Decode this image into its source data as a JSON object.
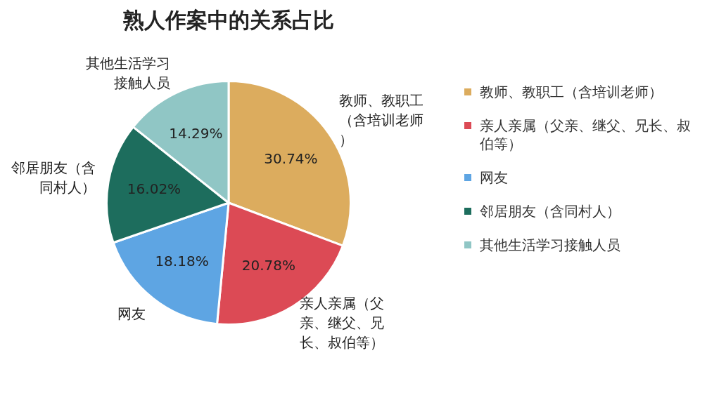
{
  "chart_data": {
    "type": "pie",
    "title": "熟人作案中的关系占比",
    "categories": [
      "教师、教职工（含培训老师）",
      "亲人亲属（父亲、继父、兄长、叔伯等）",
      "网友",
      "邻居朋友（含同村人）",
      "其他生活学习接触人员"
    ],
    "values": [
      30.74,
      20.78,
      18.18,
      16.02,
      14.29
    ],
    "value_labels": [
      "30.74%",
      "20.78%",
      "18.18%",
      "16.02%",
      "14.29%"
    ],
    "colors": [
      "#dcac5e",
      "#dc4a55",
      "#5ea5e3",
      "#1d6d5d",
      "#90c6c5"
    ],
    "legend": "right"
  }
}
